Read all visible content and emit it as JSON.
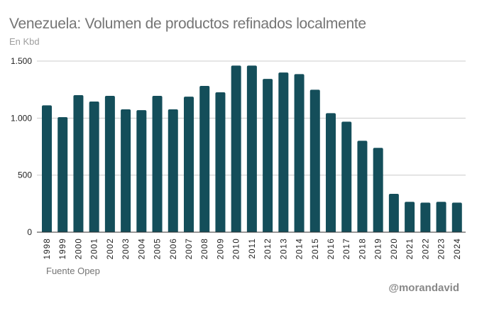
{
  "header": {
    "title": "Venezuela: Volumen de productos refinados localmente",
    "subtitle": "En Kbd"
  },
  "footer": {
    "source": "Fuente Opep",
    "credit": "@morandavid"
  },
  "colors": {
    "bar": "#144e5a",
    "grid": "#cccccc",
    "axis": "#333333",
    "text": "#222222"
  },
  "chart_data": {
    "type": "bar",
    "title": "Venezuela: Volumen de productos refinados localmente",
    "subtitle": "En Kbd",
    "xlabel": "",
    "ylabel": "",
    "ylim": [
      0,
      1500
    ],
    "yticks": [
      0,
      500,
      1000,
      1500
    ],
    "ytick_labels": [
      "0",
      "500",
      "1.000",
      "1.500"
    ],
    "grid": true,
    "legend": "none",
    "categories": [
      "1998",
      "1999",
      "2000",
      "2001",
      "2002",
      "2003",
      "2004",
      "2005",
      "2006",
      "2007",
      "2008",
      "2009",
      "2010",
      "2011",
      "2012",
      "2013",
      "2014",
      "2015",
      "2016",
      "2017",
      "2018",
      "2019",
      "2020",
      "2021",
      "2022",
      "2023",
      "2024"
    ],
    "series": [
      {
        "name": "Productos refinados (Kbd)",
        "values": [
          1112,
          1008,
          1201,
          1145,
          1195,
          1077,
          1070,
          1195,
          1077,
          1188,
          1282,
          1226,
          1460,
          1460,
          1344,
          1400,
          1386,
          1249,
          1043,
          969,
          801,
          739,
          336,
          266,
          259,
          266,
          259
        ]
      }
    ],
    "annotations": [
      "Fuente Opep",
      "@morandavid"
    ]
  }
}
